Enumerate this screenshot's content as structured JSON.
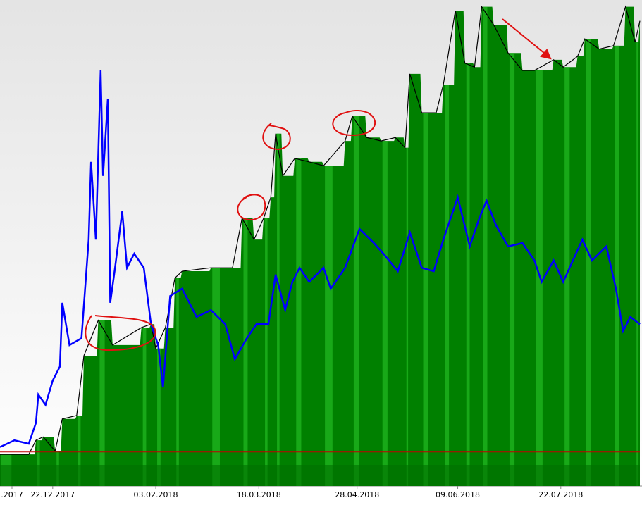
{
  "chart_data": {
    "type": "area-line",
    "xlim": [
      -22,
      245
    ],
    "ylim": [
      0,
      100
    ],
    "xticks": [
      {
        "value": -17,
        "label": ".2017"
      },
      {
        "value": 0,
        "label": "22.12.2017"
      },
      {
        "value": 43,
        "label": "03.02.2018"
      },
      {
        "value": 86,
        "label": "18.03.2018"
      },
      {
        "value": 127,
        "label": "28.04.2018"
      },
      {
        "value": 169,
        "label": "09.06.2018"
      },
      {
        "value": 212,
        "label": "22.07.2018"
      }
    ],
    "reference_line": {
      "value": 7,
      "color": "#c00000"
    },
    "series": [
      {
        "kind": "area",
        "color": "#008000",
        "x": [
          -22,
          -10,
          -7,
          -4,
          1,
          4,
          10,
          13,
          19,
          25,
          37,
          41,
          43,
          47,
          51,
          54,
          66,
          75,
          79,
          84,
          88,
          91,
          93,
          96,
          101,
          107,
          113,
          122,
          125,
          131,
          137,
          143,
          147,
          149,
          154,
          160,
          163,
          168,
          172,
          176,
          179,
          184,
          190,
          196,
          201,
          209,
          213,
          219,
          222,
          228,
          234,
          239,
          243,
          245
        ],
        "values": [
          6.5,
          6.5,
          9.4,
          10.1,
          7.2,
          13.8,
          14.5,
          26.8,
          34.1,
          29,
          32.6,
          33.3,
          28.3,
          32.6,
          42.8,
          44.2,
          44.9,
          44.9,
          55.1,
          50.7,
          55.1,
          59.4,
          72.5,
          63.8,
          67.4,
          66.7,
          65.9,
          71,
          76.1,
          71.7,
          71,
          71.7,
          69.6,
          84.8,
          76.8,
          76.8,
          82.6,
          97.8,
          87,
          86.2,
          98.6,
          94.9,
          89.1,
          85.5,
          85.5,
          87.7,
          86.2,
          88.4,
          92,
          89.9,
          90.6,
          98.6,
          91.3,
          95.7
        ]
      },
      {
        "kind": "line",
        "color": "#0000ff",
        "x": [
          -22,
          -16,
          -10,
          -7,
          -6,
          -3,
          0,
          3,
          4,
          7,
          12,
          15,
          16,
          18,
          20,
          21,
          23,
          24,
          26,
          29,
          31,
          34,
          38,
          41,
          44,
          46,
          49,
          54,
          60,
          66,
          72,
          76,
          81,
          85,
          90,
          93,
          97,
          100,
          103,
          107,
          113,
          116,
          122,
          128,
          134,
          138,
          144,
          149,
          154,
          159,
          163,
          169,
          174,
          178,
          181,
          185,
          190,
          196,
          201,
          204,
          209,
          213,
          221,
          225,
          231,
          235,
          238,
          241,
          245
        ],
        "values": [
          8,
          9.4,
          8.7,
          13,
          18.8,
          16.7,
          21.7,
          24.6,
          37.7,
          29,
          30.4,
          50.7,
          66.7,
          50.7,
          85.5,
          63.8,
          79.7,
          37.7,
          44.9,
          56.5,
          44.9,
          47.8,
          44.9,
          33.3,
          29,
          20.3,
          39.1,
          40.6,
          34.8,
          36.2,
          33.3,
          26.1,
          30.4,
          33.3,
          33.3,
          43.5,
          36.2,
          42,
          44.9,
          42,
          44.9,
          40.6,
          44.9,
          52.9,
          50,
          47.8,
          44.2,
          52.2,
          44.9,
          44.2,
          50.7,
          59.4,
          49.3,
          55.1,
          58.7,
          53.6,
          49.3,
          50,
          46.4,
          42,
          46.4,
          42,
          50.7,
          46.4,
          49.3,
          40.6,
          31.9,
          34.8,
          33.3
        ]
      }
    ]
  }
}
